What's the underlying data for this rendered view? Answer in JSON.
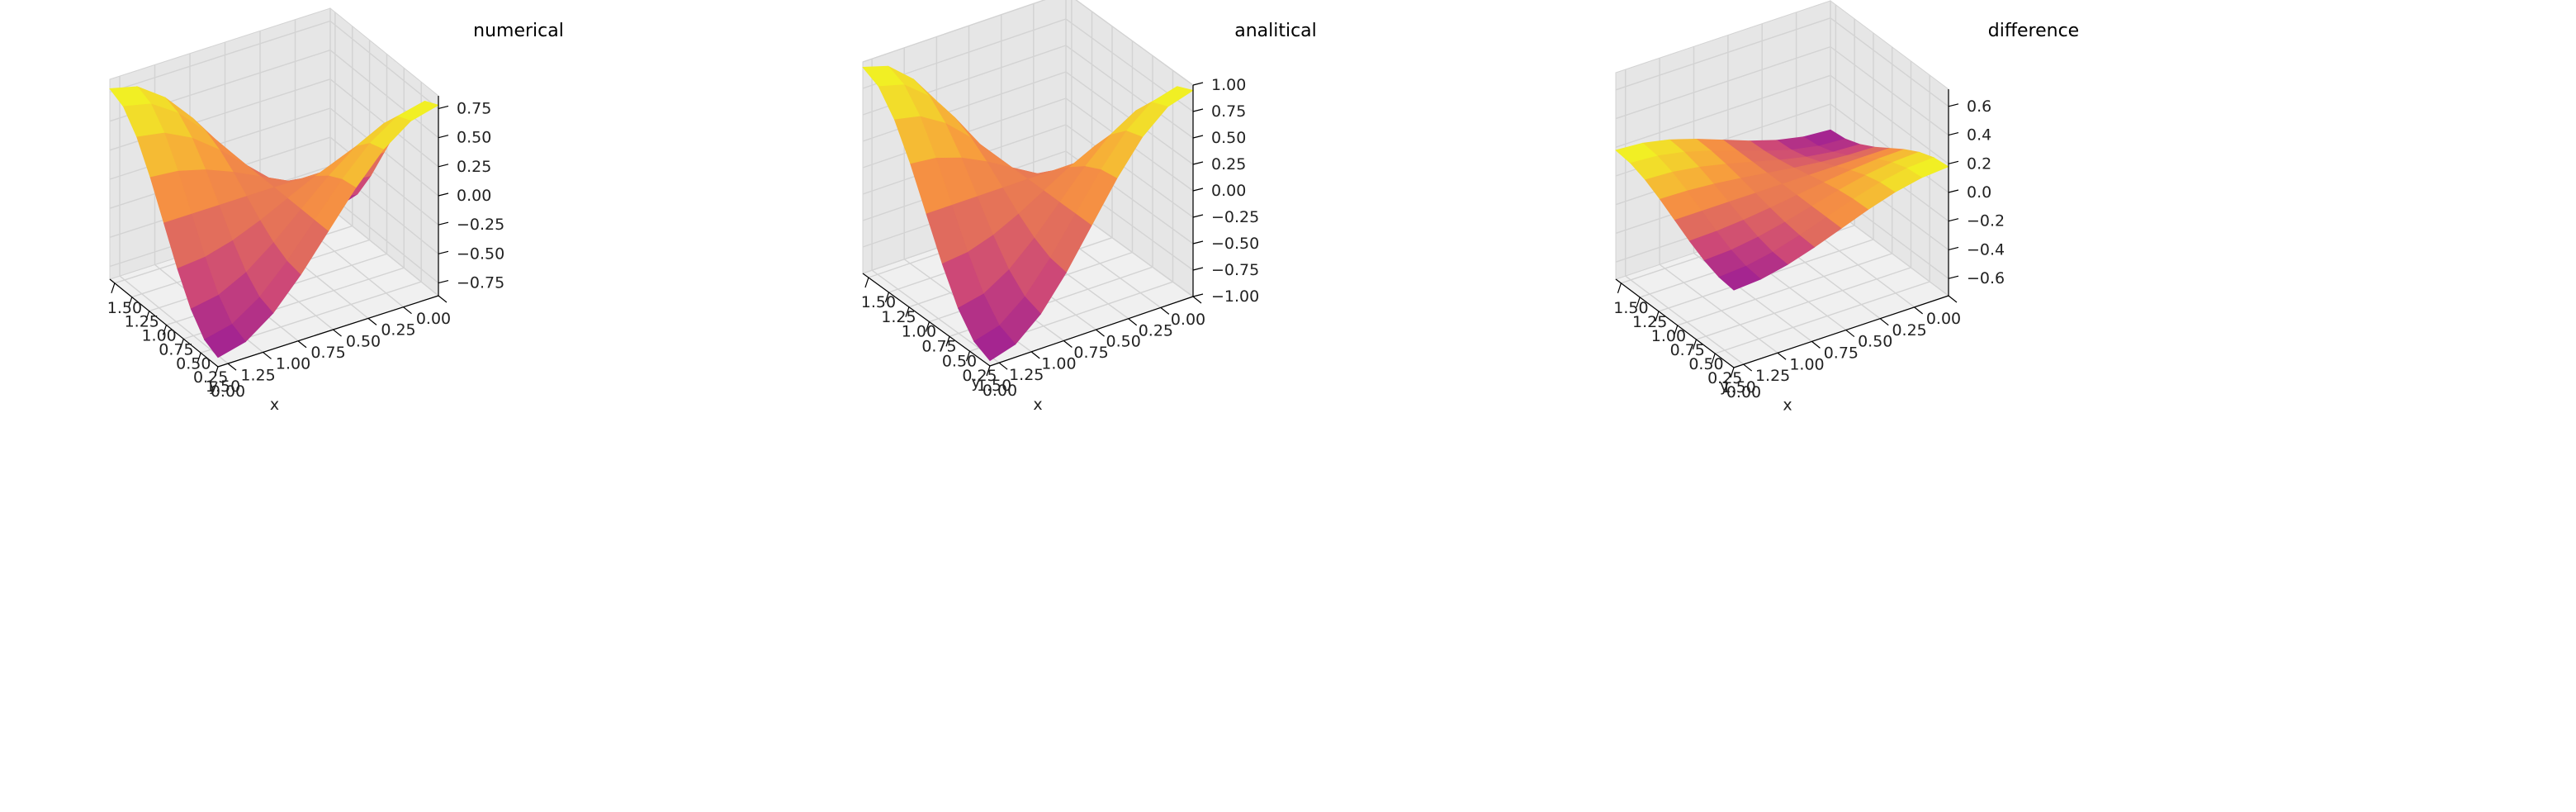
{
  "colors": {
    "pane": "#f0f0f0",
    "pane_dark": "#e6e6e6",
    "grid": "#d3d3d3",
    "edge": "#000000",
    "colormap": "plasma"
  },
  "chart_data": [
    {
      "type": "surface3d",
      "title": "numerical",
      "xlabel": "x",
      "ylabel": "y",
      "zlabel": "",
      "xticks": [
        "0.00",
        "0.25",
        "0.50",
        "0.75",
        "1.00",
        "1.25",
        "1.50"
      ],
      "yticks": [
        "0.00",
        "0.25",
        "0.50",
        "0.75",
        "1.00",
        "1.25",
        "1.50"
      ],
      "zticks": [
        "−0.75",
        "−0.50",
        "−0.25",
        "0.00",
        "0.25",
        "0.50",
        "0.75"
      ],
      "xlim": [
        0,
        1.5708
      ],
      "ylim": [
        0,
        1.5708
      ],
      "zlim": [
        -0.86,
        0.86
      ],
      "grid": true,
      "surface": "z(x,y) = amp * cos(2x) * cos(2y) on a 9x9 grid",
      "amplitude": 0.78,
      "grid_points": 9
    },
    {
      "type": "surface3d",
      "title": "analitical",
      "xlabel": "x",
      "ylabel": "y",
      "zlabel": "",
      "xticks": [
        "0.00",
        "0.25",
        "0.50",
        "0.75",
        "1.00",
        "1.25",
        "1.50"
      ],
      "yticks": [
        "0.00",
        "0.25",
        "0.50",
        "0.75",
        "1.00",
        "1.25",
        "1.50"
      ],
      "zticks": [
        "−1.00",
        "−0.75",
        "−0.50",
        "−0.25",
        "0.00",
        "0.25",
        "0.50",
        "0.75",
        "1.00"
      ],
      "xlim": [
        0,
        1.5708
      ],
      "ylim": [
        0,
        1.5708
      ],
      "zlim": [
        -1.0,
        1.0
      ],
      "grid": true,
      "surface": "z(x,y) = amp * cos(2x) * cos(2y) on a 9x9 grid",
      "amplitude": 0.95,
      "grid_points": 9
    },
    {
      "type": "surface3d",
      "title": "difference",
      "xlabel": "x",
      "ylabel": "y",
      "zlabel": "",
      "xticks": [
        "0.00",
        "0.25",
        "0.50",
        "0.75",
        "1.00",
        "1.25",
        "1.50"
      ],
      "yticks": [
        "0.00",
        "0.25",
        "0.50",
        "0.75",
        "1.00",
        "1.25",
        "1.50"
      ],
      "zticks": [
        "−0.6",
        "−0.4",
        "−0.2",
        "0.0",
        "0.2",
        "0.4",
        "0.6"
      ],
      "xlim": [
        0,
        1.5708
      ],
      "ylim": [
        0,
        1.5708
      ],
      "zlim": [
        -0.72,
        0.72
      ],
      "grid": true,
      "surface": "z(x,y) = amp * cos(2x) * cos(2y) on a 9x9 grid (mostly flat)",
      "amplitude": 0.18,
      "grid_points": 9
    }
  ]
}
